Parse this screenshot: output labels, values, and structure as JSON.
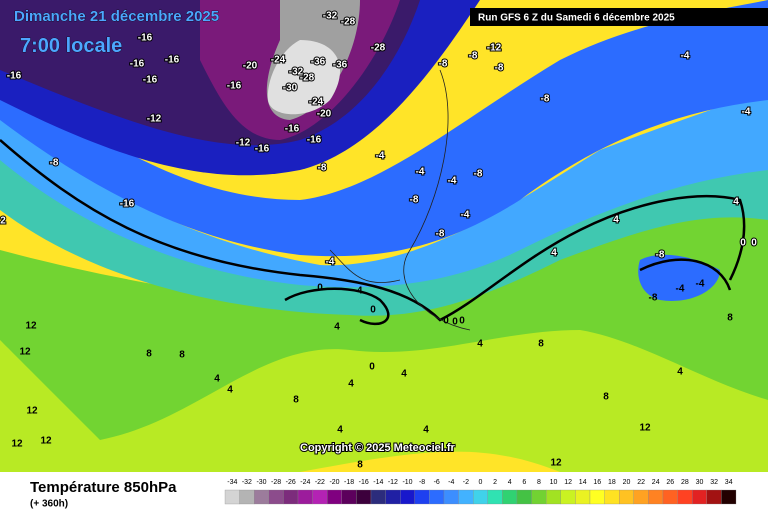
{
  "header": {
    "date": "Dimanche 21 décembre 2025",
    "time": "7:00 locale",
    "run": "Run GFS 6 Z du Samedi 6 décembre 2025",
    "copyright": "Copyright © 2025 Meteociel.fr"
  },
  "footer": {
    "title": "Température 850hPa",
    "lead": "(+ 360h)"
  },
  "legend": {
    "ticks": [
      -34,
      -32,
      -30,
      -28,
      -26,
      -24,
      -22,
      -20,
      -18,
      -16,
      -14,
      -12,
      -10,
      -8,
      -6,
      -4,
      -2,
      0,
      2,
      4,
      6,
      8,
      10,
      12,
      14,
      16,
      18,
      20,
      22,
      24,
      26,
      28,
      30,
      32,
      34
    ],
    "colors": [
      "#d4d4d4",
      "#b4b4b4",
      "#9c7c9c",
      "#8c4c8c",
      "#7c2c7c",
      "#9c1c9c",
      "#b422b4",
      "#800080",
      "#5c005c",
      "#3c003c",
      "#2c2c7c",
      "#2020a4",
      "#1818cc",
      "#1e40f0",
      "#2c6cff",
      "#3c8eff",
      "#42b2ff",
      "#40d2ea",
      "#30e2b2",
      "#30d272",
      "#44c244",
      "#72d232",
      "#a2e222",
      "#caf222",
      "#eaf222",
      "#ffff22",
      "#ffe222",
      "#ffc222",
      "#ffa222",
      "#ff8222",
      "#ff6222",
      "#ff4222",
      "#e22222",
      "#a21212",
      "#220000"
    ]
  },
  "contour_labels": [
    -16,
    -16,
    -16,
    -16,
    -16,
    -20,
    -24,
    -28,
    -28,
    -32,
    -36,
    -36,
    -32,
    -30,
    -28,
    -24,
    -20,
    -16,
    -16,
    -12,
    -16,
    -8,
    -12,
    -16,
    -8,
    -16,
    -8,
    -8,
    -8,
    -8,
    -12,
    -4,
    -4,
    -4,
    -8,
    -4,
    -8,
    -4,
    -8,
    -4,
    0,
    -4,
    0,
    0,
    0,
    0,
    4,
    8,
    8,
    12,
    12,
    12,
    12,
    12,
    4,
    4,
    4,
    8,
    4,
    4,
    8,
    12,
    12,
    4,
    8,
    -8,
    -4,
    -8,
    0,
    -4,
    0,
    4,
    4,
    4,
    -4,
    4,
    8,
    4,
    8,
    2,
    0
  ]
}
